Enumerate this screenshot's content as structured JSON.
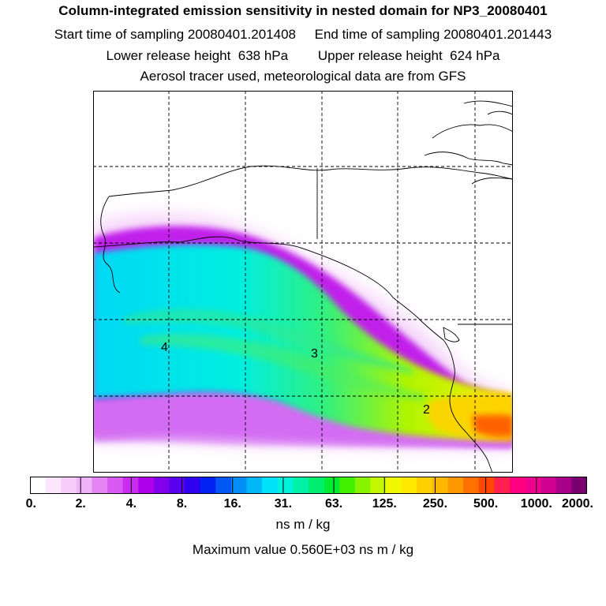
{
  "header": {
    "title": "Column-integrated emission sensitivity in nested domain for NP3_20080401",
    "line2": "Start time of sampling 20080401.201408     End time of sampling 20080401.201443",
    "line3": "Lower release height  638 hPa        Upper release height  624 hPa",
    "line4": "Aerosol tracer used, meteorological data are from GFS"
  },
  "map": {
    "point_labels": [
      "4",
      "3",
      "2"
    ]
  },
  "colorbar": {
    "tick_labels": [
      "0.",
      "2.",
      "4.",
      "8.",
      "16.",
      "31.",
      "63.",
      "125.",
      "250.",
      "500.",
      "1000.",
      "2000."
    ],
    "colors": [
      "#ffffff",
      "#fbe6fd",
      "#f6cdfb",
      "#f0b2f8",
      "#e584f5",
      "#d95af2",
      "#c92cef",
      "#b000ea",
      "#8200ec",
      "#5a00ee",
      "#3000f0",
      "#0022f2",
      "#0058f4",
      "#008ef6",
      "#00b8f8",
      "#00e2fa",
      "#00f2dc",
      "#00f0a8",
      "#00ee70",
      "#00ec30",
      "#40f000",
      "#88f400",
      "#c4f800",
      "#f0f800",
      "#ffe800",
      "#ffd000",
      "#ffb800",
      "#ff9800",
      "#ff7000",
      "#ff4800",
      "#ff2050",
      "#ff0080",
      "#f00090",
      "#d00090",
      "#a8008a",
      "#780070"
    ],
    "units": "ns m / kg"
  },
  "footer": {
    "max_value": "Maximum value  0.560E+03 ns m / kg"
  }
}
